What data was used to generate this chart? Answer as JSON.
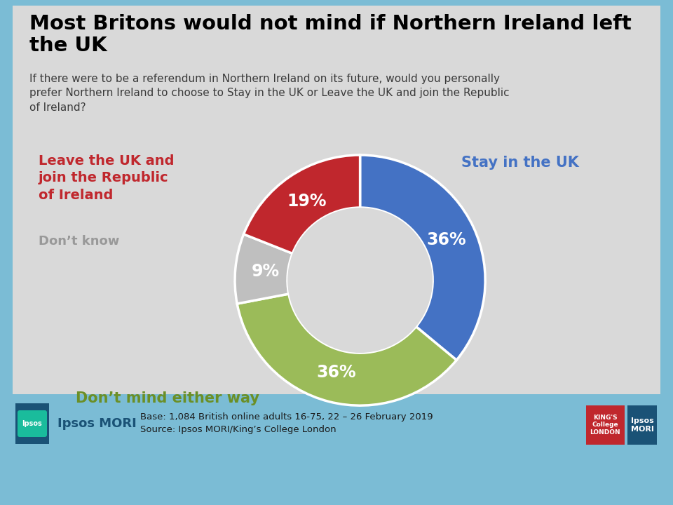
{
  "title": "Most Britons would not mind if Northern Ireland left\nthe UK",
  "subtitle": "If there were to be a referendum in Northern Ireland on its future, would you personally\nprefer Northern Ireland to choose to Stay in the UK or Leave the UK and join the Republic\nof Ireland?",
  "slices": [
    36,
    36,
    9,
    19
  ],
  "slice_colors": [
    "#4472C4",
    "#9BBB59",
    "#BFBFBF",
    "#C0272D"
  ],
  "slice_pct_labels": [
    "36%",
    "36%",
    "9%",
    "19%"
  ],
  "label_colors": [
    "#4472C4",
    "#6B8F27",
    "#999999",
    "#C0272D"
  ],
  "background_color": "#7BBCD5",
  "panel_color": "#D9D9D9",
  "footer_bg": "#7BBCD5",
  "footer_text1": "Base: 1,084 British online adults 16-75, 22 – 26 February 2019",
  "footer_text2": "Source: Ipsos MORI/King’s College London"
}
